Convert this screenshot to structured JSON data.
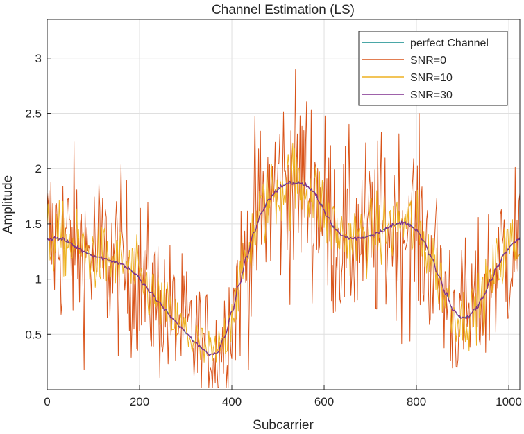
{
  "chart_data": {
    "type": "line",
    "title": "Channel Estimation (LS)",
    "xlabel": "Subcarrier",
    "ylabel": "Amplitude",
    "xlim": [
      0,
      1024
    ],
    "ylim": [
      0,
      3.35
    ],
    "grid": true,
    "legend_position": "top-right",
    "x_ticks": [
      0,
      200,
      400,
      600,
      800,
      1000
    ],
    "x_tick_labels": [
      "0",
      "200",
      "400",
      "600",
      "800",
      "1000"
    ],
    "y_ticks": [
      0.5,
      1,
      1.5,
      2,
      2.5,
      3
    ],
    "y_tick_labels": [
      "0.5",
      "1",
      "1.5",
      "2",
      "2.5",
      "3"
    ],
    "x": [
      0,
      16,
      32,
      48,
      64,
      80,
      96,
      112,
      128,
      144,
      160,
      176,
      192,
      208,
      224,
      240,
      256,
      272,
      288,
      304,
      320,
      336,
      352,
      368,
      384,
      400,
      416,
      432,
      448,
      464,
      480,
      496,
      512,
      528,
      544,
      560,
      576,
      592,
      608,
      624,
      640,
      656,
      672,
      688,
      704,
      720,
      736,
      752,
      768,
      784,
      800,
      816,
      832,
      848,
      864,
      880,
      896,
      912,
      928,
      944,
      960,
      976,
      992,
      1008,
      1024
    ],
    "series": [
      {
        "name": "perfect Channel",
        "color": "#0F8A8A",
        "noise_amplitude": 0,
        "values": [
          1.36,
          1.37,
          1.36,
          1.33,
          1.29,
          1.25,
          1.22,
          1.2,
          1.18,
          1.16,
          1.14,
          1.1,
          1.04,
          0.96,
          0.88,
          0.8,
          0.72,
          0.64,
          0.57,
          0.5,
          0.43,
          0.37,
          0.32,
          0.33,
          0.47,
          0.7,
          0.95,
          1.2,
          1.42,
          1.6,
          1.72,
          1.8,
          1.85,
          1.87,
          1.87,
          1.85,
          1.79,
          1.69,
          1.56,
          1.45,
          1.39,
          1.37,
          1.37,
          1.38,
          1.4,
          1.43,
          1.46,
          1.49,
          1.51,
          1.5,
          1.44,
          1.34,
          1.2,
          1.03,
          0.86,
          0.72,
          0.65,
          0.66,
          0.73,
          0.84,
          0.98,
          1.12,
          1.24,
          1.32,
          1.36
        ]
      },
      {
        "name": "SNR=0",
        "color": "#D95319",
        "noise_amplitude": 0.9
      },
      {
        "name": "SNR=10",
        "color": "#EDB120",
        "noise_amplitude": 0.35
      },
      {
        "name": "SNR=30",
        "color": "#7E2F8E",
        "noise_amplitude": 0.02
      }
    ]
  }
}
